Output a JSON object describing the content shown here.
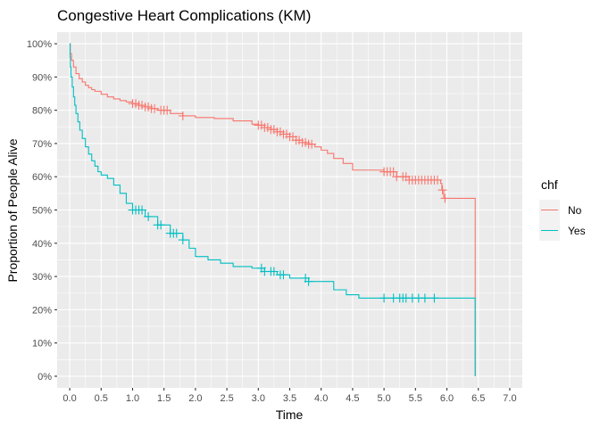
{
  "chart_data": {
    "type": "line",
    "subtype": "kaplan-meier step curve with censor marks",
    "title": "Congestive Heart Complications (KM)",
    "xlabel": "Time",
    "ylabel": "Proportion of People Alive",
    "xlim": [
      -0.2,
      7.2
    ],
    "ylim": [
      -0.035,
      1.035
    ],
    "x_ticks": [
      0.0,
      0.5,
      1.0,
      1.5,
      2.0,
      2.5,
      3.0,
      3.5,
      4.0,
      4.5,
      5.0,
      5.5,
      6.0,
      6.5,
      7.0
    ],
    "x_tick_labels": [
      "0.0",
      "0.5",
      "1.0",
      "1.5",
      "2.0",
      "2.5",
      "3.0",
      "3.5",
      "4.0",
      "4.5",
      "5.0",
      "5.5",
      "6.0",
      "6.5",
      "7.0"
    ],
    "y_ticks": [
      0,
      0.1,
      0.2,
      0.3,
      0.4,
      0.5,
      0.6,
      0.7,
      0.8,
      0.9,
      1.0
    ],
    "y_tick_labels": [
      "0%",
      "10%",
      "20%",
      "30%",
      "40%",
      "50%",
      "60%",
      "70%",
      "80%",
      "90%",
      "100%"
    ],
    "grid": true,
    "background": "#ebebeb",
    "legend": {
      "title": "chf",
      "position": "right",
      "entries": [
        "No",
        "Yes"
      ]
    },
    "series": [
      {
        "name": "No",
        "color": "#f8766d",
        "steps": [
          [
            0,
            1.0
          ],
          [
            0.01,
            0.97
          ],
          [
            0.03,
            0.95
          ],
          [
            0.06,
            0.93
          ],
          [
            0.1,
            0.91
          ],
          [
            0.15,
            0.895
          ],
          [
            0.2,
            0.885
          ],
          [
            0.25,
            0.875
          ],
          [
            0.3,
            0.868
          ],
          [
            0.35,
            0.862
          ],
          [
            0.4,
            0.857
          ],
          [
            0.5,
            0.848
          ],
          [
            0.6,
            0.84
          ],
          [
            0.7,
            0.834
          ],
          [
            0.8,
            0.829
          ],
          [
            0.9,
            0.825
          ],
          [
            1.0,
            0.82
          ],
          [
            1.1,
            0.815
          ],
          [
            1.2,
            0.81
          ],
          [
            1.3,
            0.805
          ],
          [
            1.4,
            0.8
          ],
          [
            1.6,
            0.79
          ],
          [
            1.8,
            0.783
          ],
          [
            2.0,
            0.778
          ],
          [
            2.3,
            0.775
          ],
          [
            2.6,
            0.768
          ],
          [
            2.9,
            0.758
          ],
          [
            3.0,
            0.755
          ],
          [
            3.1,
            0.748
          ],
          [
            3.2,
            0.742
          ],
          [
            3.3,
            0.735
          ],
          [
            3.4,
            0.728
          ],
          [
            3.5,
            0.72
          ],
          [
            3.6,
            0.71
          ],
          [
            3.7,
            0.703
          ],
          [
            3.8,
            0.698
          ],
          [
            3.9,
            0.69
          ],
          [
            4.0,
            0.68
          ],
          [
            4.1,
            0.67
          ],
          [
            4.2,
            0.655
          ],
          [
            4.35,
            0.64
          ],
          [
            4.5,
            0.62
          ],
          [
            5.0,
            0.615
          ],
          [
            5.2,
            0.6
          ],
          [
            5.4,
            0.59
          ],
          [
            5.9,
            0.58
          ],
          [
            5.92,
            0.56
          ],
          [
            5.95,
            0.535
          ],
          [
            6.45,
            0.0
          ]
        ],
        "end_x": 6.45,
        "censor_times": [
          1.0,
          1.05,
          1.1,
          1.15,
          1.2,
          1.25,
          1.3,
          1.35,
          1.45,
          1.5,
          1.55,
          1.8,
          3.0,
          3.05,
          3.1,
          3.15,
          3.2,
          3.25,
          3.3,
          3.35,
          3.4,
          3.45,
          3.5,
          3.55,
          3.6,
          3.65,
          3.7,
          3.75,
          3.8,
          3.85,
          5.0,
          5.05,
          5.1,
          5.15,
          5.2,
          5.3,
          5.35,
          5.4,
          5.45,
          5.5,
          5.55,
          5.6,
          5.65,
          5.7,
          5.75,
          5.8,
          5.85,
          5.93,
          5.97
        ]
      },
      {
        "name": "Yes",
        "color": "#00bfc4",
        "steps": [
          [
            0,
            1.0
          ],
          [
            0.005,
            0.96
          ],
          [
            0.01,
            0.93
          ],
          [
            0.02,
            0.9
          ],
          [
            0.04,
            0.87
          ],
          [
            0.06,
            0.84
          ],
          [
            0.08,
            0.815
          ],
          [
            0.1,
            0.79
          ],
          [
            0.13,
            0.765
          ],
          [
            0.16,
            0.74
          ],
          [
            0.2,
            0.715
          ],
          [
            0.25,
            0.69
          ],
          [
            0.3,
            0.668
          ],
          [
            0.35,
            0.648
          ],
          [
            0.4,
            0.632
          ],
          [
            0.45,
            0.615
          ],
          [
            0.5,
            0.605
          ],
          [
            0.6,
            0.595
          ],
          [
            0.7,
            0.575
          ],
          [
            0.8,
            0.55
          ],
          [
            0.9,
            0.52
          ],
          [
            1.0,
            0.5
          ],
          [
            1.2,
            0.48
          ],
          [
            1.4,
            0.455
          ],
          [
            1.6,
            0.43
          ],
          [
            1.8,
            0.41
          ],
          [
            1.9,
            0.385
          ],
          [
            2.0,
            0.36
          ],
          [
            2.2,
            0.35
          ],
          [
            2.4,
            0.34
          ],
          [
            2.6,
            0.33
          ],
          [
            2.9,
            0.325
          ],
          [
            3.1,
            0.315
          ],
          [
            3.3,
            0.305
          ],
          [
            3.5,
            0.295
          ],
          [
            3.8,
            0.285
          ],
          [
            4.2,
            0.26
          ],
          [
            4.4,
            0.245
          ],
          [
            4.6,
            0.235
          ],
          [
            6.45,
            0.0
          ]
        ],
        "end_x": 6.45,
        "censor_times": [
          1.0,
          1.05,
          1.1,
          1.15,
          1.25,
          1.4,
          1.45,
          1.6,
          1.65,
          1.7,
          1.8,
          3.05,
          3.1,
          3.2,
          3.25,
          3.35,
          3.4,
          3.75,
          3.8,
          5.0,
          5.15,
          5.25,
          5.3,
          5.35,
          5.45,
          5.55,
          5.65,
          5.8
        ]
      }
    ]
  }
}
